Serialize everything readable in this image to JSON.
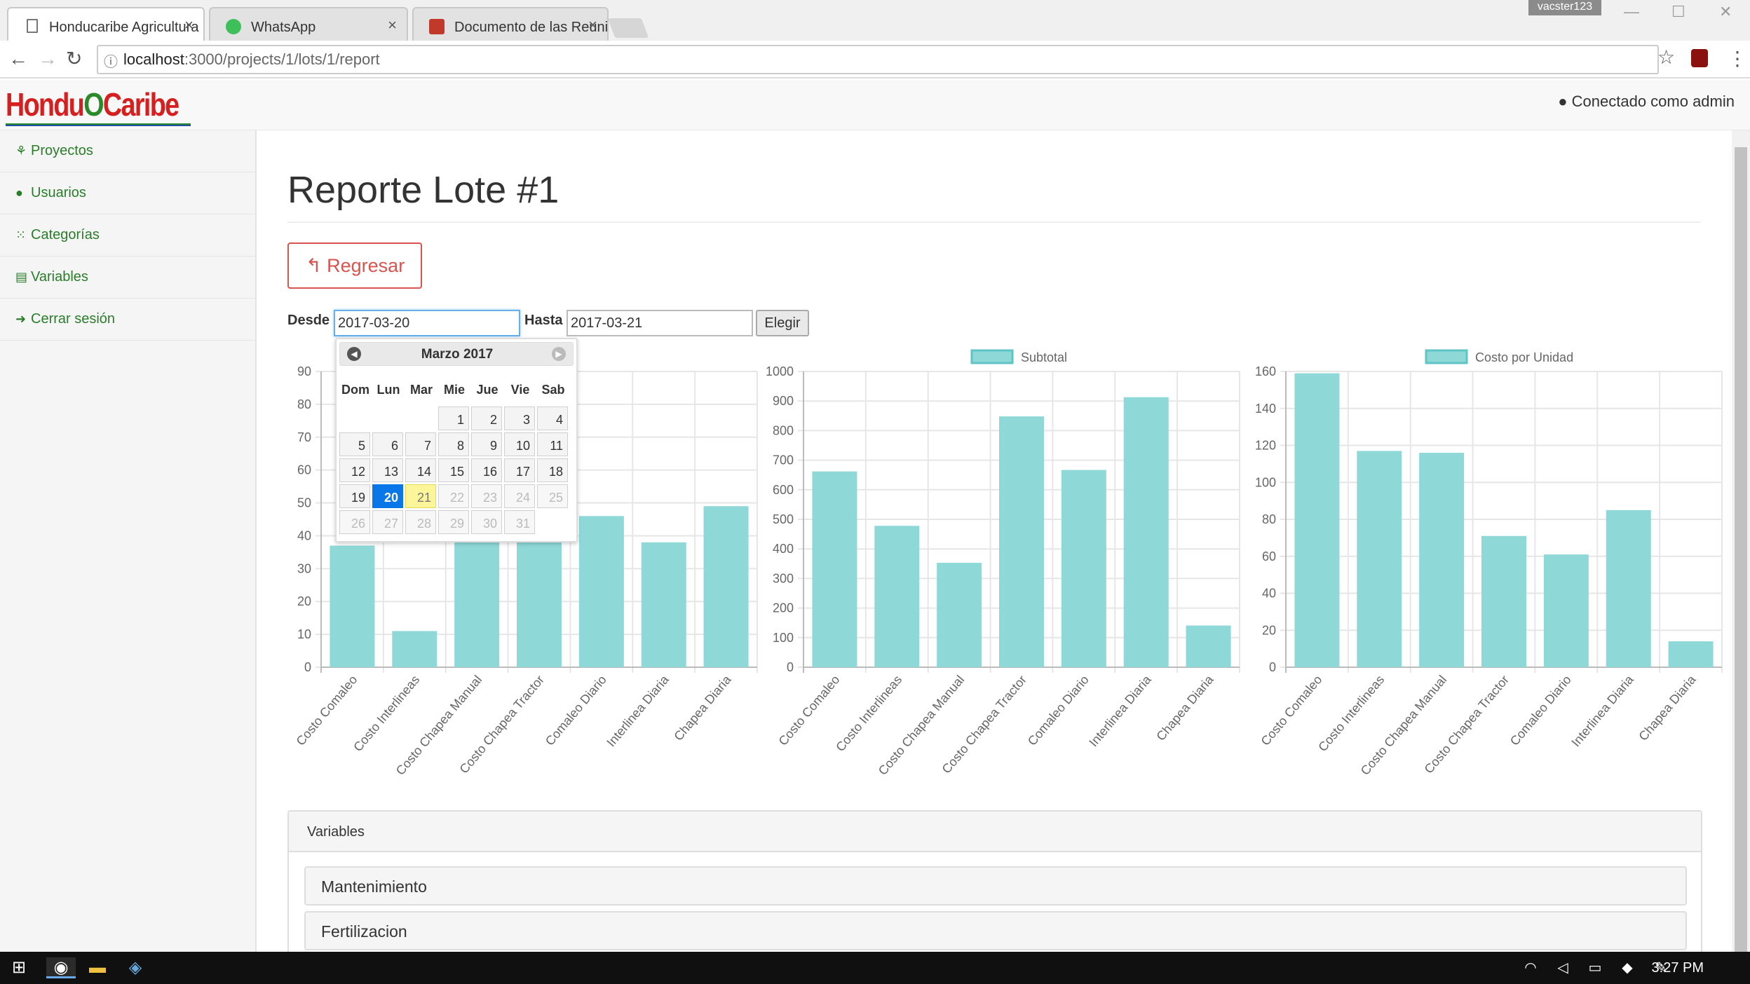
{
  "browser": {
    "tabs": [
      {
        "title": "Honducaribe Agricultura",
        "active": true
      },
      {
        "title": "WhatsApp",
        "active": false
      },
      {
        "title": "Documento de las Reuni",
        "active": false
      }
    ],
    "profile": "vacster123",
    "url_host": "localhost",
    "url_path": ":3000/projects/1/lots/1/report"
  },
  "app": {
    "logo": {
      "part1": "Hondu",
      "part2": "O",
      "part3": "Caribe"
    },
    "user_status": "Conectado como admin",
    "sidebar": [
      {
        "icon": "seedling-icon",
        "glyph": "⚘",
        "label": "Proyectos"
      },
      {
        "icon": "user-icon",
        "glyph": "●",
        "label": "Usuarios"
      },
      {
        "icon": "grid-icon",
        "glyph": "⁙",
        "label": "Categorías"
      },
      {
        "icon": "table-icon",
        "glyph": "▤",
        "label": "Variables"
      },
      {
        "icon": "sign-out-icon",
        "glyph": "➜",
        "label": "Cerrar sesión"
      }
    ]
  },
  "page": {
    "title": "Reporte Lote #1",
    "back_button": "Regresar",
    "filter": {
      "from_label": "Desde",
      "from_value": "2017-03-20",
      "to_label": "Hasta",
      "to_value": "2017-03-21",
      "submit": "Elegir"
    }
  },
  "datepicker": {
    "title": "Marzo 2017",
    "weekdays": [
      "Dom",
      "Lun",
      "Mar",
      "Mie",
      "Jue",
      "Vie",
      "Sab"
    ],
    "weeks": [
      [
        "",
        "",
        "",
        "1",
        "2",
        "3",
        "4"
      ],
      [
        "5",
        "6",
        "7",
        "8",
        "9",
        "10",
        "11"
      ],
      [
        "12",
        "13",
        "14",
        "15",
        "16",
        "17",
        "18"
      ],
      [
        "19",
        "20",
        "21",
        "22",
        "23",
        "24",
        "25"
      ],
      [
        "26",
        "27",
        "28",
        "29",
        "30",
        "31",
        ""
      ]
    ],
    "selected": "20",
    "highlighted": "21",
    "min_day": 1,
    "max_day": 21
  },
  "chart_data": [
    {
      "type": "bar",
      "title": "",
      "legend": "",
      "categories": [
        "Costo Comaleo",
        "Costo Interlineas",
        "Costo Chapea Manual",
        "Costo Chapea Tractor",
        "Comaleo Diario",
        "Interlinea Diaria",
        "Chapea Diaria"
      ],
      "values": [
        37,
        11,
        39,
        39,
        46,
        38,
        49
      ],
      "ylim": [
        0,
        90
      ],
      "yticks": [
        "0",
        "10",
        "20",
        "30",
        "40",
        "50",
        "60",
        "70",
        "80",
        "90"
      ],
      "grid": true,
      "color": "#8fd8d8"
    },
    {
      "type": "bar",
      "title": "",
      "legend": "Subtotal",
      "categories": [
        "Costo Comaleo",
        "Costo Interlineas",
        "Costo Chapea Manual",
        "Costo Chapea Tractor",
        "Comaleo Diario",
        "Interlinea Diaria",
        "Chapea Diaria"
      ],
      "values": [
        662,
        478,
        353,
        848,
        667,
        913,
        141
      ],
      "ylim": [
        0,
        1000
      ],
      "yticks": [
        "0",
        "100",
        "200",
        "300",
        "400",
        "500",
        "600",
        "700",
        "800",
        "900",
        "1000"
      ],
      "grid": true,
      "color": "#8fd8d8"
    },
    {
      "type": "bar",
      "title": "",
      "legend": "Costo por Unidad",
      "categories": [
        "Costo Comaleo",
        "Costo Interlineas",
        "Costo Chapea Manual",
        "Costo Chapea Tractor",
        "Comaleo Diario",
        "Interlinea Diaria",
        "Chapea Diaria"
      ],
      "values": [
        159,
        117,
        116,
        71,
        61,
        85,
        14
      ],
      "ylim": [
        0,
        160
      ],
      "yticks": [
        "0",
        "20",
        "40",
        "60",
        "80",
        "100",
        "120",
        "140",
        "160"
      ],
      "grid": true,
      "color": "#8fd8d8"
    }
  ],
  "variables_panel": {
    "heading": "Variables",
    "items": [
      "Mantenimiento",
      "Fertilizacion"
    ]
  },
  "taskbar": {
    "time": "3:27 PM"
  }
}
